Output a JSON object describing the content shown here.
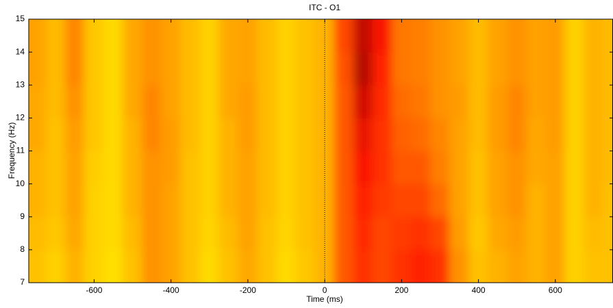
{
  "chart_data": {
    "type": "heatmap",
    "title": "ITC - O1",
    "x_label": "Time (ms)",
    "y_label": "Frequency (Hz)",
    "xlim": [
      -770,
      750
    ],
    "ylim": [
      7,
      15
    ],
    "xticks": [
      -600,
      -400,
      -200,
      0,
      200,
      400,
      600
    ],
    "yticks": [
      7,
      8,
      9,
      10,
      11,
      12,
      13,
      14,
      15
    ],
    "vline": 0,
    "clim": [
      0,
      1
    ],
    "colormap": [
      "#ffff00",
      "#ff9800",
      "#ff1a00",
      "#7a0000"
    ],
    "x": [
      -750,
      -700,
      -650,
      -600,
      -550,
      -500,
      -450,
      -400,
      -350,
      -300,
      -250,
      -200,
      -150,
      -100,
      -50,
      0,
      50,
      100,
      150,
      200,
      250,
      300,
      350,
      400,
      450,
      500,
      550,
      600,
      650,
      700,
      750
    ],
    "y": [
      7.5,
      8.5,
      9.5,
      10.5,
      11.5,
      12.5,
      13.5,
      14.5
    ],
    "z": [
      [
        0.2,
        0.15,
        0.25,
        0.15,
        0.1,
        0.2,
        0.35,
        0.3,
        0.2,
        0.12,
        0.2,
        0.28,
        0.2,
        0.12,
        0.18,
        0.25,
        0.5,
        0.6,
        0.55,
        0.6,
        0.65,
        0.6,
        0.35,
        0.2,
        0.25,
        0.3,
        0.25,
        0.3,
        0.15,
        0.2,
        0.2
      ],
      [
        0.22,
        0.18,
        0.28,
        0.15,
        0.12,
        0.22,
        0.35,
        0.3,
        0.2,
        0.14,
        0.22,
        0.3,
        0.2,
        0.14,
        0.2,
        0.25,
        0.5,
        0.62,
        0.55,
        0.58,
        0.6,
        0.55,
        0.32,
        0.18,
        0.28,
        0.32,
        0.25,
        0.3,
        0.15,
        0.22,
        0.2
      ],
      [
        0.25,
        0.2,
        0.3,
        0.15,
        0.12,
        0.25,
        0.35,
        0.3,
        0.2,
        0.15,
        0.25,
        0.3,
        0.22,
        0.15,
        0.2,
        0.25,
        0.5,
        0.65,
        0.58,
        0.55,
        0.55,
        0.45,
        0.3,
        0.2,
        0.3,
        0.35,
        0.25,
        0.3,
        0.15,
        0.25,
        0.2
      ],
      [
        0.25,
        0.2,
        0.3,
        0.16,
        0.12,
        0.25,
        0.35,
        0.32,
        0.2,
        0.15,
        0.25,
        0.3,
        0.22,
        0.15,
        0.2,
        0.25,
        0.5,
        0.68,
        0.6,
        0.5,
        0.5,
        0.4,
        0.3,
        0.2,
        0.3,
        0.35,
        0.28,
        0.3,
        0.15,
        0.25,
        0.22
      ],
      [
        0.28,
        0.2,
        0.32,
        0.18,
        0.12,
        0.25,
        0.38,
        0.32,
        0.22,
        0.15,
        0.25,
        0.32,
        0.22,
        0.15,
        0.2,
        0.25,
        0.5,
        0.72,
        0.6,
        0.48,
        0.45,
        0.38,
        0.3,
        0.22,
        0.32,
        0.38,
        0.28,
        0.32,
        0.15,
        0.25,
        0.22
      ],
      [
        0.28,
        0.22,
        0.35,
        0.18,
        0.12,
        0.28,
        0.38,
        0.3,
        0.22,
        0.15,
        0.28,
        0.32,
        0.22,
        0.15,
        0.2,
        0.25,
        0.5,
        0.78,
        0.62,
        0.45,
        0.42,
        0.35,
        0.32,
        0.22,
        0.32,
        0.38,
        0.3,
        0.32,
        0.15,
        0.25,
        0.22
      ],
      [
        0.3,
        0.22,
        0.38,
        0.18,
        0.12,
        0.28,
        0.35,
        0.3,
        0.22,
        0.15,
        0.28,
        0.3,
        0.22,
        0.15,
        0.2,
        0.25,
        0.52,
        0.85,
        0.65,
        0.42,
        0.4,
        0.35,
        0.3,
        0.22,
        0.3,
        0.35,
        0.3,
        0.32,
        0.15,
        0.25,
        0.22
      ],
      [
        0.3,
        0.22,
        0.38,
        0.18,
        0.12,
        0.28,
        0.35,
        0.3,
        0.22,
        0.15,
        0.28,
        0.3,
        0.22,
        0.15,
        0.2,
        0.25,
        0.55,
        0.82,
        0.68,
        0.42,
        0.4,
        0.35,
        0.3,
        0.22,
        0.3,
        0.35,
        0.3,
        0.32,
        0.15,
        0.25,
        0.22
      ]
    ]
  }
}
